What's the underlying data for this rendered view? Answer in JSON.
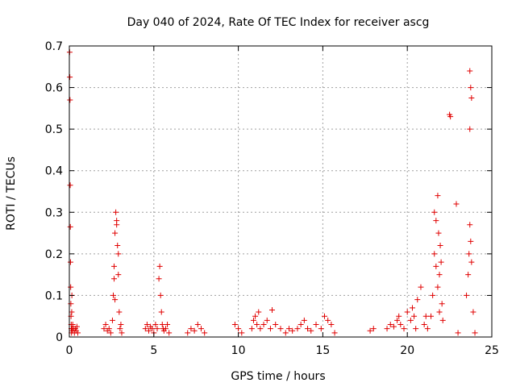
{
  "chart_data": {
    "type": "scatter",
    "title": "Day 040 of 2024, Rate Of TEC Index for receiver ascg",
    "xlabel": "GPS time / hours",
    "ylabel": "ROTI / TECUs",
    "xlim": [
      0,
      25
    ],
    "ylim": [
      0,
      0.7
    ],
    "xticks": [
      0,
      5,
      10,
      15,
      20,
      25
    ],
    "yticks": [
      0,
      0.1,
      0.2,
      0.3,
      0.4,
      0.5,
      0.6,
      0.7
    ],
    "grid": true,
    "marker": "plus",
    "color": "#e00000",
    "series": [
      {
        "name": "ROTI",
        "x": [
          0.02,
          0.03,
          0.04,
          0.05,
          0.06,
          0.07,
          0.08,
          0.09,
          0.1,
          0.11,
          0.12,
          0.13,
          0.14,
          0.15,
          0.16,
          0.18,
          0.2,
          0.25,
          0.3,
          0.35,
          0.4,
          0.45,
          0.5,
          2.05,
          2.15,
          2.25,
          2.35,
          2.45,
          2.55,
          2.6,
          2.65,
          2.7,
          2.75,
          2.8,
          2.85,
          2.9,
          2.95,
          3.0,
          3.05,
          3.1,
          2.65,
          2.7,
          2.8,
          2.9,
          4.5,
          4.6,
          4.7,
          4.8,
          4.9,
          5.0,
          5.1,
          5.2,
          5.3,
          5.35,
          5.4,
          5.45,
          5.5,
          5.55,
          5.6,
          5.7,
          5.8,
          5.9,
          7.0,
          7.2,
          7.4,
          7.6,
          7.8,
          8.0,
          9.8,
          10.0,
          10.2,
          10.8,
          10.9,
          11.0,
          11.1,
          11.2,
          11.3,
          11.5,
          11.7,
          11.9,
          12.0,
          12.2,
          12.5,
          12.8,
          13.0,
          13.2,
          13.5,
          13.7,
          13.9,
          14.1,
          14.3,
          14.6,
          14.9,
          15.1,
          15.3,
          15.5,
          15.7,
          17.8,
          18.0,
          18.8,
          19.0,
          19.2,
          19.4,
          19.5,
          19.6,
          19.8,
          20.0,
          20.2,
          20.3,
          20.4,
          20.5,
          20.6,
          20.8,
          21.0,
          21.1,
          21.2,
          21.4,
          21.5,
          21.6,
          21.7,
          21.8,
          21.85,
          21.9,
          21.95,
          22.0,
          22.05,
          22.1,
          21.6,
          21.7,
          21.8,
          21.9,
          22.5,
          22.55,
          22.9,
          23.0,
          23.5,
          23.6,
          23.65,
          23.7,
          23.75,
          23.8,
          23.9,
          24.0,
          23.7,
          23.75,
          23.8,
          23.7
        ],
        "y": [
          0.685,
          0.625,
          0.57,
          0.365,
          0.265,
          0.18,
          0.12,
          0.08,
          0.05,
          0.03,
          0.02,
          0.01,
          0.06,
          0.1,
          0.02,
          0.015,
          0.03,
          0.02,
          0.01,
          0.02,
          0.015,
          0.025,
          0.01,
          0.02,
          0.03,
          0.015,
          0.02,
          0.01,
          0.04,
          0.1,
          0.17,
          0.25,
          0.3,
          0.28,
          0.22,
          0.15,
          0.06,
          0.02,
          0.03,
          0.01,
          0.14,
          0.09,
          0.27,
          0.2,
          0.02,
          0.03,
          0.015,
          0.025,
          0.02,
          0.01,
          0.03,
          0.02,
          0.14,
          0.17,
          0.1,
          0.06,
          0.03,
          0.02,
          0.015,
          0.02,
          0.03,
          0.01,
          0.01,
          0.02,
          0.015,
          0.03,
          0.02,
          0.01,
          0.03,
          0.02,
          0.01,
          0.02,
          0.04,
          0.05,
          0.03,
          0.06,
          0.02,
          0.03,
          0.04,
          0.02,
          0.065,
          0.03,
          0.02,
          0.01,
          0.02,
          0.015,
          0.02,
          0.03,
          0.04,
          0.02,
          0.015,
          0.03,
          0.02,
          0.05,
          0.04,
          0.03,
          0.01,
          0.015,
          0.02,
          0.02,
          0.03,
          0.025,
          0.04,
          0.05,
          0.03,
          0.02,
          0.06,
          0.04,
          0.07,
          0.05,
          0.02,
          0.09,
          0.12,
          0.03,
          0.05,
          0.02,
          0.05,
          0.1,
          0.2,
          0.28,
          0.34,
          0.25,
          0.15,
          0.22,
          0.18,
          0.08,
          0.04,
          0.3,
          0.17,
          0.12,
          0.06,
          0.535,
          0.53,
          0.32,
          0.01,
          0.1,
          0.15,
          0.2,
          0.27,
          0.23,
          0.18,
          0.06,
          0.01,
          0.64,
          0.6,
          0.575,
          0.5
        ]
      }
    ]
  }
}
